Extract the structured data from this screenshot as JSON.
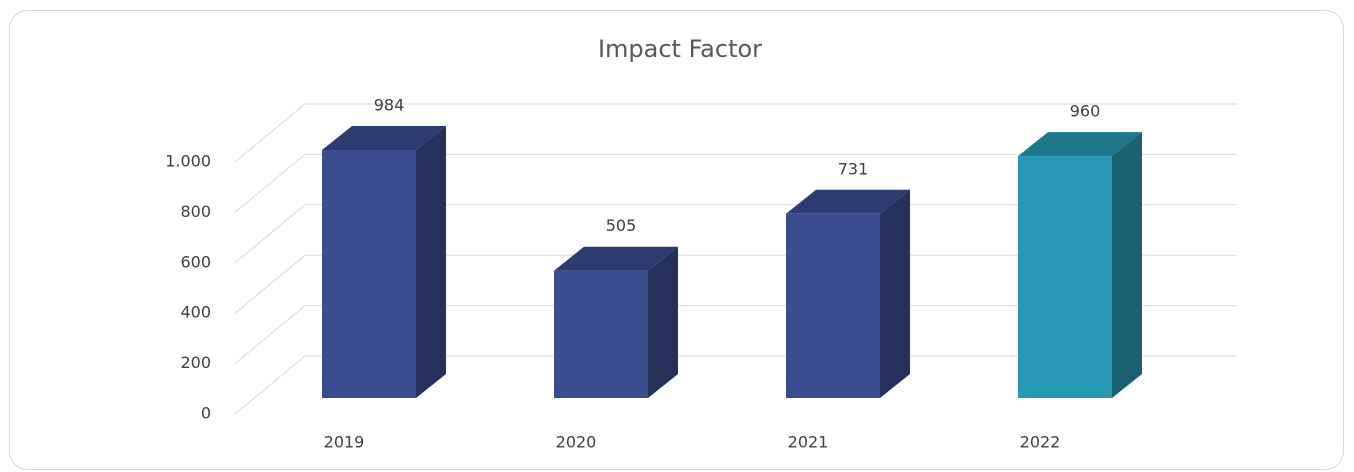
{
  "chart_data": {
    "type": "bar3d",
    "title": "Impact Factor",
    "categories": [
      "2019",
      "2020",
      "2021",
      "2022"
    ],
    "values": [
      984,
      505,
      731,
      960
    ],
    "colors": [
      "#3a4d8f",
      "#3a4d8f",
      "#3a4d8f",
      "#2899b5"
    ],
    "ylim": [
      0,
      1000
    ],
    "yticks": [
      0,
      200,
      400,
      600,
      800,
      {
        "value": 1000,
        "label": "1.000"
      }
    ],
    "grid": true
  }
}
